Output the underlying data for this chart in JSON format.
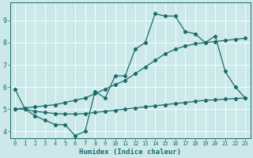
{
  "xlabel": "Humidex (Indice chaleur)",
  "xlim": [
    -0.5,
    23.5
  ],
  "ylim": [
    3.7,
    9.8
  ],
  "xticks": [
    0,
    1,
    2,
    3,
    4,
    5,
    6,
    7,
    8,
    9,
    10,
    11,
    12,
    13,
    14,
    15,
    16,
    17,
    18,
    19,
    20,
    21,
    22,
    23
  ],
  "yticks": [
    4,
    5,
    6,
    7,
    8,
    9
  ],
  "bg_color": "#cde8e8",
  "grid_color": "#f0ffff",
  "line_color": "#1a6b6b",
  "line1_x": [
    0,
    1,
    2,
    3,
    4,
    5,
    6,
    7,
    8,
    9,
    10,
    11,
    12,
    13,
    14,
    15,
    16,
    17,
    18,
    19,
    20,
    21,
    22,
    23
  ],
  "line1_y": [
    5.9,
    5.0,
    4.7,
    4.5,
    4.3,
    4.3,
    3.8,
    4.0,
    5.8,
    5.5,
    6.5,
    6.5,
    7.7,
    8.0,
    9.3,
    9.2,
    9.2,
    8.5,
    8.4,
    8.0,
    8.3,
    6.7,
    6.0,
    5.5
  ],
  "line2_x": [
    0,
    1,
    2,
    3,
    4,
    5,
    6,
    7,
    8,
    9,
    10,
    11,
    12,
    13,
    14,
    15,
    16,
    17,
    18,
    19,
    20,
    21,
    22,
    23
  ],
  "line2_y": [
    5.0,
    5.05,
    5.1,
    5.15,
    5.2,
    5.3,
    5.4,
    5.5,
    5.7,
    5.9,
    6.1,
    6.3,
    6.6,
    6.9,
    7.2,
    7.5,
    7.7,
    7.85,
    7.95,
    8.0,
    8.05,
    8.1,
    8.15,
    8.2
  ],
  "line3_x": [
    0,
    1,
    2,
    3,
    4,
    5,
    6,
    7,
    8,
    9,
    10,
    11,
    12,
    13,
    14,
    15,
    16,
    17,
    18,
    19,
    20,
    21,
    22,
    23
  ],
  "line3_y": [
    5.0,
    5.0,
    4.9,
    4.85,
    4.8,
    4.78,
    4.78,
    4.8,
    4.85,
    4.9,
    4.95,
    5.0,
    5.05,
    5.1,
    5.15,
    5.2,
    5.25,
    5.3,
    5.35,
    5.4,
    5.42,
    5.45,
    5.48,
    5.5
  ]
}
